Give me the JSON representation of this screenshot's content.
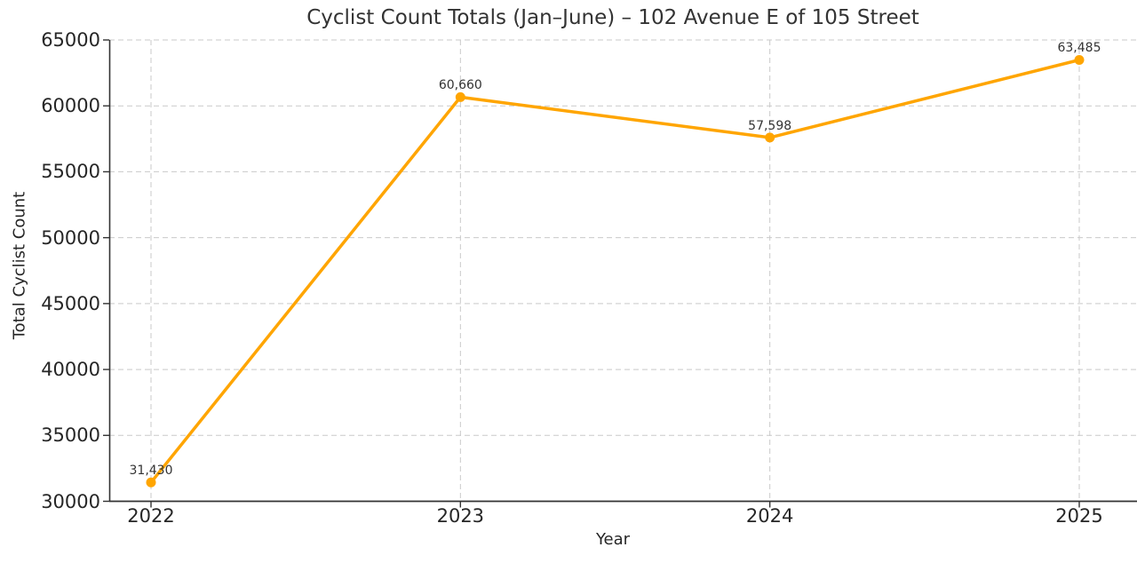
{
  "chart_data": {
    "type": "line",
    "title": "Cyclist Count Totals (Jan–June) – 102 Avenue E of 105 Street",
    "xlabel": "Year",
    "ylabel": "Total Cyclist Count",
    "categories": [
      "2022",
      "2023",
      "2024",
      "2025"
    ],
    "series": [
      {
        "name": "Total Cyclist Count",
        "values": [
          31430,
          60660,
          57598,
          63485
        ]
      }
    ],
    "point_labels": [
      "31,430",
      "60,660",
      "57,598",
      "63,485"
    ],
    "ylim": [
      30000,
      65000
    ],
    "yticks": [
      30000,
      35000,
      40000,
      45000,
      50000,
      55000,
      60000,
      65000
    ],
    "ytick_labels": [
      "30000",
      "35000",
      "40000",
      "45000",
      "50000",
      "55000",
      "60000",
      "65000"
    ],
    "grid": true,
    "grid_style": "dashed",
    "legend_position": "none",
    "colors": {
      "line": "#FFA500",
      "marker": "#FFA500",
      "grid": "#c9c9c9",
      "spine": "#333333",
      "tick_text": "#262626",
      "title_text": "#333333",
      "annotation_text": "#333333"
    }
  }
}
